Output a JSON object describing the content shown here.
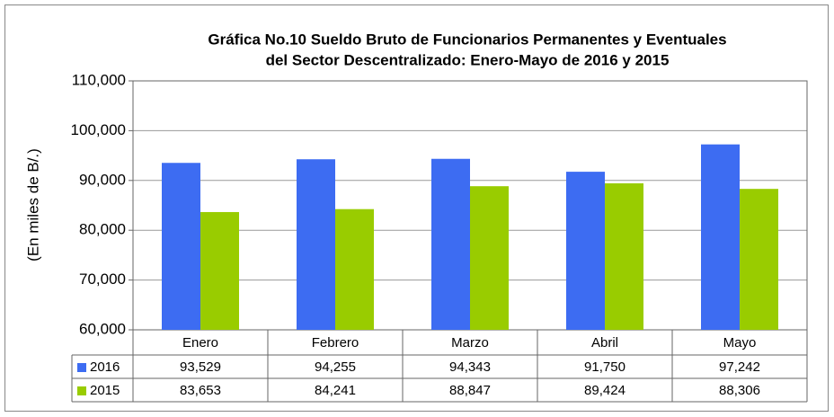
{
  "chart_data": {
    "type": "bar",
    "title": [
      "Gráfica No.10 Sueldo Bruto de Funcionarios Permanentes y Eventuales",
      "del Sector Descentralizado: Enero-Mayo de 2016 y 2015"
    ],
    "y_label": "(En miles de B/.)",
    "categories": [
      "Enero",
      "Febrero",
      "Marzo",
      "Abril",
      "Mayo"
    ],
    "series": [
      {
        "name": "2016",
        "color": "#3d6cf2",
        "values": [
          93529,
          94255,
          94343,
          91750,
          97242
        ],
        "value_labels": [
          "93,529",
          "94,255",
          "94,343",
          "91,750",
          "97,242"
        ]
      },
      {
        "name": "2015",
        "color": "#99cc00",
        "values": [
          83653,
          84241,
          88847,
          89424,
          88306
        ],
        "value_labels": [
          "83,653",
          "84,241",
          "88,847",
          "89,424",
          "88,306"
        ]
      }
    ],
    "ylim": [
      60000,
      110000
    ],
    "yticks": [
      {
        "value": 60000,
        "label": "60,000"
      },
      {
        "value": 70000,
        "label": "70,000"
      },
      {
        "value": 80000,
        "label": "80,000"
      },
      {
        "value": 90000,
        "label": "90,000"
      },
      {
        "value": 100000,
        "label": "100,000"
      },
      {
        "value": 110000,
        "label": "110,000"
      }
    ],
    "grid": true
  }
}
